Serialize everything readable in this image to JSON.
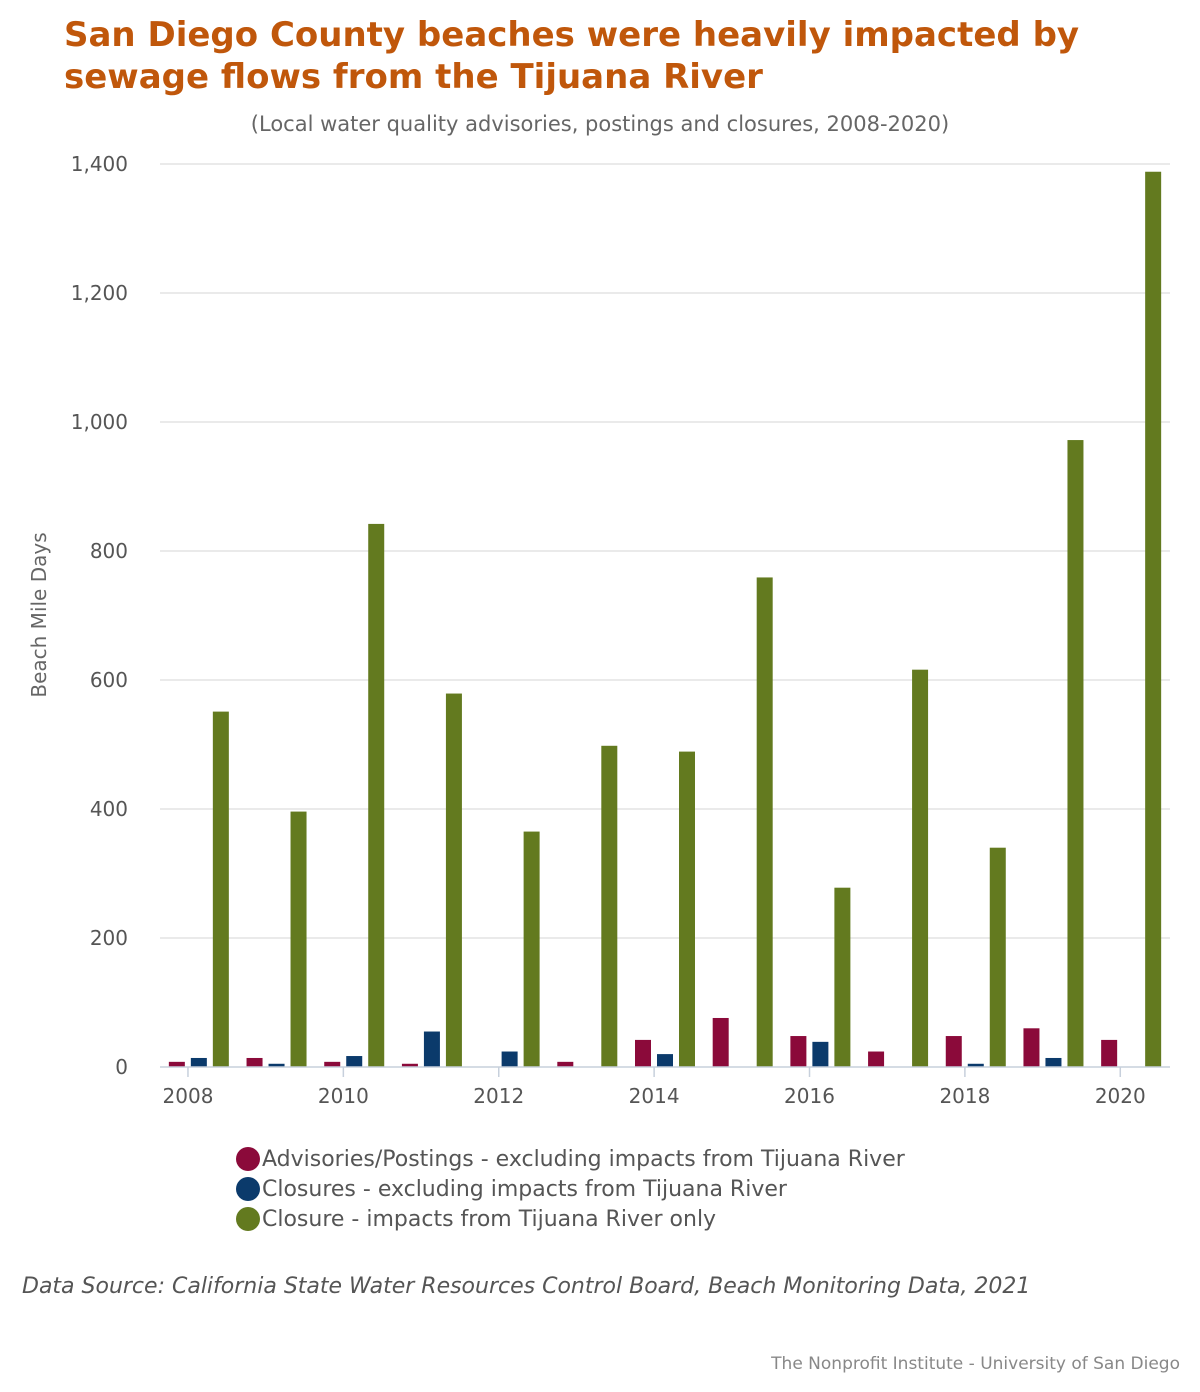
{
  "chart_data": {
    "type": "bar",
    "title": "San Diego County beaches were heavily impacted by sewage flows from the Tijuana River",
    "subtitle": "(Local water quality advisories, postings and closures, 2008-2020)",
    "ylabel": "Beach Mile Days",
    "xlabel": "",
    "ylim": [
      0,
      1400
    ],
    "yticks": [
      0,
      200,
      400,
      600,
      800,
      1000,
      1200,
      1400
    ],
    "ytick_labels": [
      "0",
      "200",
      "400",
      "600",
      "800",
      "1,000",
      "1,200",
      "1,400"
    ],
    "categories": [
      2008,
      2009,
      2010,
      2011,
      2012,
      2013,
      2014,
      2015,
      2016,
      2017,
      2018,
      2019,
      2020
    ],
    "xtick_labels": [
      "2008",
      "2010",
      "2012",
      "2014",
      "2016",
      "2018",
      "2020"
    ],
    "grid": true,
    "legend_position": "bottom",
    "series": [
      {
        "name": "Advisories/Postings - excluding impacts from Tijuana River",
        "color": "#8b0a3a",
        "values": [
          8,
          14,
          8,
          5,
          0,
          8,
          42,
          76,
          48,
          24,
          48,
          60,
          42
        ]
      },
      {
        "name": "Closures - excluding impacts from Tijuana River",
        "color": "#0b3a6b",
        "values": [
          14,
          5,
          17,
          55,
          24,
          0,
          20,
          0,
          39,
          0,
          5,
          14,
          0
        ]
      },
      {
        "name": "Closure - impacts from Tijuana River only",
        "color": "#637a1f",
        "values": [
          551,
          396,
          842,
          579,
          365,
          498,
          489,
          759,
          278,
          616,
          340,
          972,
          1388
        ]
      }
    ]
  },
  "source_note": "Data Source: California State Water Resources Control Board, Beach Monitoring Data, 2021",
  "credit": "The Nonprofit Institute - University of San Diego"
}
